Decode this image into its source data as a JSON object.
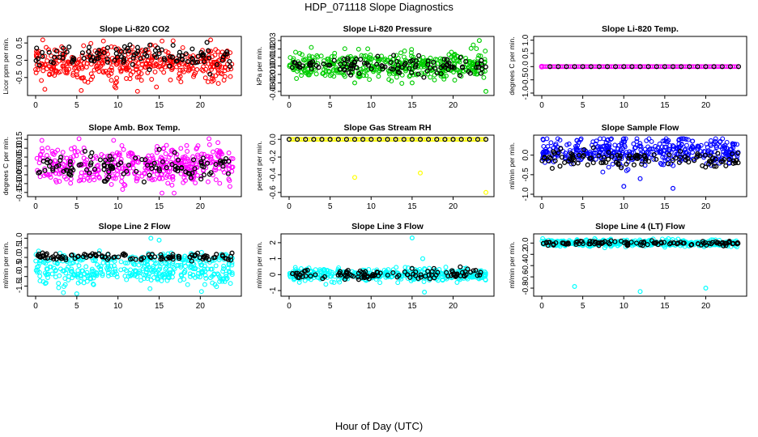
{
  "title": "HDP_071118  Slope Diagnostics",
  "xlabel": "Hour of Day (UTC)",
  "chart_data": [
    {
      "type": "scatter",
      "title": "Slope Li-820 CO2",
      "ylabel": "Licor ppm per min.",
      "color": "#ff0000",
      "xlim": [
        0,
        24
      ],
      "ylim": [
        -0.95,
        0.62
      ],
      "yticks": [
        -0.5,
        0.0,
        0.5
      ],
      "ytick_labels": [
        "-0.5",
        "0.0",
        "0.5"
      ],
      "xticks": [
        0,
        5,
        10,
        15,
        20
      ],
      "spread": 0.28,
      "center": -0.1,
      "black_center": 0.1,
      "black_spread": 0.15,
      "outliers": []
    },
    {
      "type": "scatter",
      "title": "Slope Li-820 Pressure",
      "ylabel": "kPa per min.",
      "color": "#00cc00",
      "xlim": [
        0,
        24
      ],
      "ylim": [
        -0.032,
        0.032
      ],
      "yticks": [
        -0.03,
        -0.02,
        -0.01,
        0.0,
        0.01,
        0.02,
        0.03
      ],
      "ytick_labels": [
        "-0.03",
        "-0.02",
        "-0.01",
        "0.00",
        "0.01",
        "0.02",
        "0.03"
      ],
      "xticks": [
        0,
        5,
        10,
        15,
        20
      ],
      "spread": 0.008,
      "center": 0.0,
      "black_center": 0.0,
      "black_spread": 0.005,
      "outliers": [
        [
          23.2,
          0.03
        ],
        [
          24,
          -0.03
        ],
        [
          8,
          -0.02
        ],
        [
          15,
          -0.02
        ]
      ]
    },
    {
      "type": "scatter",
      "title": "Slope Li-820 Temp.",
      "ylabel": "degrees C per min.",
      "color": "#ff00ff",
      "xlim": [
        0,
        24
      ],
      "ylim": [
        -1.0,
        1.05
      ],
      "yticks": [
        -1.0,
        -0.5,
        0.0,
        0.5,
        1.0
      ],
      "ytick_labels": [
        "-1.0",
        "-0.5",
        "0.0",
        "0.5",
        "1.0"
      ],
      "xticks": [
        0,
        5,
        10,
        15,
        20
      ],
      "spread": 0,
      "center": 0.0,
      "black_center": 0.0,
      "black_spread": 0,
      "outliers": []
    },
    {
      "type": "scatter",
      "title": "Slope Amb. Box Temp.",
      "ylabel": "degrees C per min.",
      "color": "#ff00ff",
      "xlim": [
        0,
        24
      ],
      "ylim": [
        -0.16,
        0.16
      ],
      "yticks": [
        -0.15,
        -0.1,
        -0.05,
        0.0,
        0.05,
        0.1,
        0.15
      ],
      "ytick_labels": [
        "-0.15",
        "-0.10",
        "-0.05",
        "0.00",
        "0.05",
        "0.10",
        "0.15"
      ],
      "xticks": [
        0,
        5,
        10,
        15,
        20
      ],
      "spread": 0.05,
      "center": 0.0,
      "black_center": 0.0,
      "black_spread": 0.04,
      "outliers": []
    },
    {
      "type": "scatter",
      "title": "Slope Gas Stream RH",
      "ylabel": "percent per min.",
      "color": "#ffff00",
      "xlim": [
        0,
        24
      ],
      "ylim": [
        -0.62,
        0.02
      ],
      "yticks": [
        -0.6,
        -0.4,
        -0.2,
        0.0
      ],
      "ytick_labels": [
        "-0.6",
        "-0.4",
        "-0.2",
        "0.0"
      ],
      "xticks": [
        0,
        5,
        10,
        15,
        20
      ],
      "spread": 0,
      "center": 0.0,
      "black_center": 0.0,
      "black_spread": 0,
      "outliers": [
        [
          8,
          -0.43
        ],
        [
          16,
          -0.38
        ],
        [
          24,
          -0.6
        ]
      ]
    },
    {
      "type": "scatter",
      "title": "Slope Sample Flow",
      "ylabel": "ml/min per min.",
      "color": "#0000ff",
      "xlim": [
        0,
        24
      ],
      "ylim": [
        -1.0,
        0.45
      ],
      "yticks": [
        -1.0,
        -0.5,
        0.0
      ],
      "ytick_labels": [
        "-1.0",
        "-0.5",
        "0.0"
      ],
      "xticks": [
        0,
        5,
        10,
        15,
        20
      ],
      "spread": 0.18,
      "center": 0.1,
      "black_center": -0.1,
      "black_spread": 0.1,
      "outliers": [
        [
          10,
          -0.8
        ],
        [
          16,
          -0.85
        ],
        [
          12,
          -0.6
        ]
      ]
    },
    {
      "type": "scatter",
      "title": "Slope Line 2 Flow",
      "ylabel": "ml/min per min.",
      "color": "#00ffff",
      "xlim": [
        0,
        24
      ],
      "ylim": [
        -1.9,
        1.1
      ],
      "yticks": [
        -1.5,
        -1.0,
        -0.5,
        0.0,
        0.5,
        1.0
      ],
      "ytick_labels": [
        "-1.5",
        "-1.0",
        "-0.5",
        "0.0",
        "0.5",
        "1.0"
      ],
      "xticks": [
        0,
        5,
        10,
        15,
        20
      ],
      "spread": 0.3,
      "center": -0.8,
      "black_center": 0.05,
      "black_spread": 0.1,
      "outliers": [
        [
          5,
          -1.9
        ],
        [
          14,
          1.0
        ],
        [
          15,
          0.9
        ]
      ]
    },
    {
      "type": "scatter",
      "title": "Slope Line 3 Flow",
      "ylabel": "ml/min per min.",
      "color": "#00ffff",
      "xlim": [
        0,
        24
      ],
      "ylim": [
        -1.2,
        2.4
      ],
      "yticks": [
        -1,
        0,
        1,
        2
      ],
      "ytick_labels": [
        "-1",
        "0",
        "1",
        "2"
      ],
      "xticks": [
        0,
        5,
        10,
        15,
        20
      ],
      "spread": 0.2,
      "center": 0.0,
      "black_center": 0.0,
      "black_spread": 0.15,
      "outliers": [
        [
          15,
          2.3
        ],
        [
          16.5,
          -1.1
        ],
        [
          16.3,
          1.0
        ]
      ]
    },
    {
      "type": "scatter",
      "title": "Slope Line 4 (LT) Flow",
      "ylabel": "ml/min per min.",
      "color": "#00ffff",
      "xlim": [
        0,
        24
      ],
      "ylim": [
        -0.9,
        0.12
      ],
      "yticks": [
        -0.8,
        -0.6,
        -0.4,
        -0.2,
        0.0
      ],
      "ytick_labels": [
        "-0.8",
        "-0.6",
        "-0.4",
        "-0.2",
        "0.0"
      ],
      "xticks": [
        0,
        5,
        10,
        15,
        20
      ],
      "spread": 0.03,
      "center": 0.0,
      "black_center": 0.0,
      "black_spread": 0.02,
      "outliers": [
        [
          4,
          -0.77
        ],
        [
          12,
          -0.86
        ],
        [
          20,
          -0.8
        ]
      ]
    }
  ]
}
